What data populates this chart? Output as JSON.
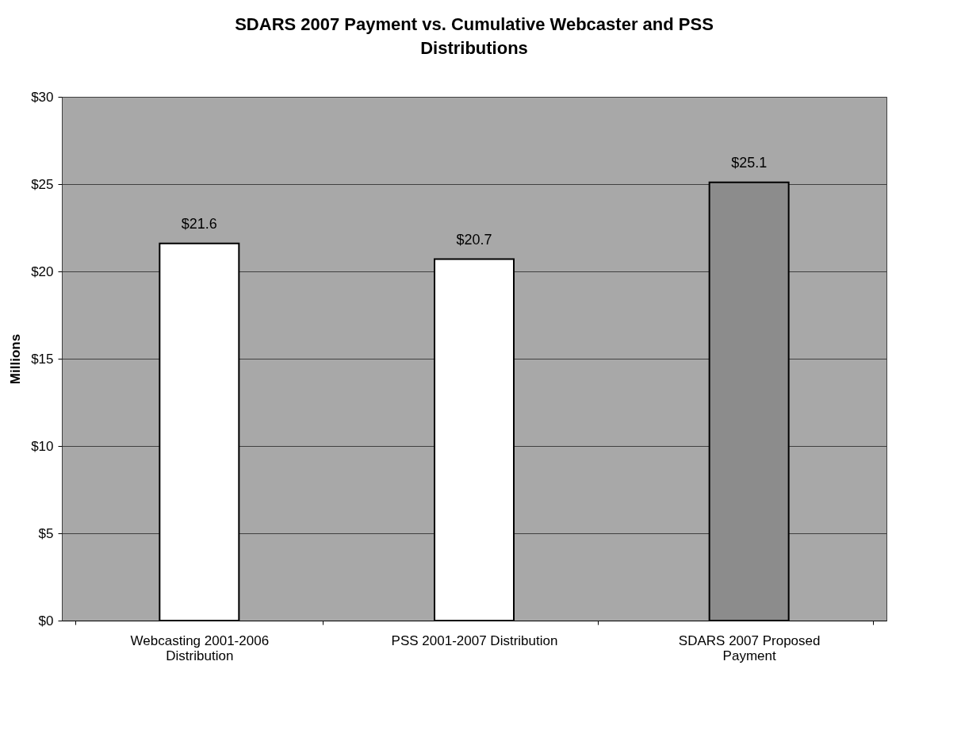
{
  "chart_data": {
    "type": "bar",
    "title": "SDARS 2007 Payment vs. Cumulative Webcaster and PSS Distributions",
    "ylabel": "Millions",
    "categories": [
      "Webcasting 2001-2006 Distribution",
      "PSS 2001-2007 Distribution",
      "SDARS 2007 Proposed Payment"
    ],
    "values": [
      21.6,
      20.7,
      25.1
    ],
    "colors": [
      "#ffffff",
      "#ffffff",
      "#8c8c8c"
    ],
    "value_labels": [
      "$21.6",
      "$20.7",
      "$25.1"
    ],
    "ylim": [
      0,
      30
    ],
    "yticks": [
      {
        "value": 0,
        "label": "$0"
      },
      {
        "value": 5,
        "label": "$5"
      },
      {
        "value": 10,
        "label": "$10"
      },
      {
        "value": 15,
        "label": "$15"
      },
      {
        "value": 20,
        "label": "$20"
      },
      {
        "value": 25,
        "label": "$25"
      },
      {
        "value": 30,
        "label": "$30"
      }
    ],
    "grid": "y"
  }
}
